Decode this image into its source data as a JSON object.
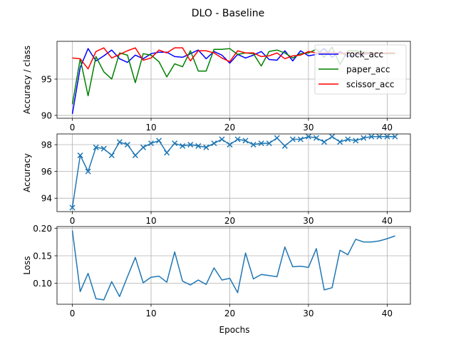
{
  "chart_data": {
    "title": "DLO - Baseline",
    "xlabel_shared": "Epochs",
    "x": [
      0,
      1,
      2,
      3,
      4,
      5,
      6,
      7,
      8,
      9,
      10,
      11,
      12,
      13,
      14,
      15,
      16,
      17,
      18,
      19,
      20,
      21,
      22,
      23,
      24,
      25,
      26,
      27,
      28,
      29,
      30,
      31,
      32,
      33,
      34,
      35,
      36,
      37,
      38,
      39,
      40,
      41
    ],
    "x_ticks": [
      0,
      10,
      20,
      30,
      40
    ],
    "subplots": [
      {
        "type": "line",
        "ylabel": "Accuracy / class",
        "ylim": [
          89.6,
          100.2
        ],
        "y_ticks": [
          90,
          95
        ],
        "grid": true,
        "legend": "top-right",
        "series": [
          {
            "name": "rock_acc",
            "color": "#0000ff",
            "values": [
              90.2,
              96.6,
              99.2,
              97.5,
              98.2,
              99.0,
              97.8,
              97.3,
              98.3,
              97.8,
              98.5,
              98.7,
              98.7,
              98.1,
              98.0,
              98.5,
              99.0,
              97.8,
              98.8,
              98.3,
              97.2,
              98.4,
              97.9,
              98.3,
              98.8,
              97.7,
              97.6,
              98.9,
              97.5,
              98.9,
              98.2,
              98.4,
              99.2,
              98.0,
              98.8,
              98.1,
              98.4,
              98.4,
              98.6,
              98.5,
              98.5,
              98.6
            ]
          },
          {
            "name": "paper_acc",
            "color": "#008000",
            "values": [
              91.5,
              97.8,
              92.7,
              98.1,
              96.0,
              95.0,
              98.6,
              98.3,
              94.5,
              98.5,
              98.3,
              97.4,
              95.3,
              97.1,
              96.7,
              98.9,
              96.1,
              96.1,
              99.1,
              99.1,
              99.2,
              98.4,
              98.6,
              98.5,
              96.8,
              98.8,
              99.0,
              98.6,
              97.9,
              98.5,
              98.6,
              99.1,
              98.0,
              99.4,
              97.0,
              98.9,
              98.9,
              98.7,
              98.6,
              98.6,
              98.5,
              98.5
            ]
          },
          {
            "name": "scissor_acc",
            "color": "#ff0000",
            "values": [
              97.9,
              97.8,
              96.4,
              98.8,
              99.3,
              97.9,
              98.4,
              98.9,
              99.3,
              97.6,
              97.9,
              99.0,
              98.6,
              99.3,
              99.3,
              97.5,
              98.9,
              98.9,
              98.6,
              97.9,
              97.4,
              98.9,
              98.6,
              98.6,
              98.1,
              98.2,
              98.6,
              97.8,
              98.2,
              98.3,
              98.8,
              98.6,
              98.6,
              98.7,
              98.5,
              98.6,
              98.6,
              98.5,
              98.6,
              98.5,
              98.6,
              98.6
            ]
          }
        ]
      },
      {
        "type": "line",
        "ylabel": "Accuracy",
        "ylim": [
          93.0,
          98.8
        ],
        "y_ticks": [
          94,
          96,
          98
        ],
        "grid": true,
        "marker": "x",
        "series": [
          {
            "color": "#1f77b4",
            "values": [
              93.3,
              97.2,
              96.0,
              97.8,
              97.7,
              97.2,
              98.2,
              98.0,
              97.2,
              97.8,
              98.1,
              98.3,
              97.4,
              98.1,
              97.9,
              98.0,
              97.9,
              97.8,
              98.1,
              98.4,
              98.0,
              98.4,
              98.3,
              98.0,
              98.1,
              98.1,
              98.5,
              97.9,
              98.4,
              98.4,
              98.6,
              98.5,
              98.2,
              98.6,
              98.2,
              98.4,
              98.3,
              98.5,
              98.6,
              98.6,
              98.6,
              98.6
            ]
          }
        ]
      },
      {
        "type": "line",
        "ylabel": "Loss",
        "xlabel": "Epochs",
        "ylim": [
          0.062,
          0.203
        ],
        "y_ticks": [
          0.1,
          0.15,
          0.2
        ],
        "y_tick_labels": [
          "0.10",
          "0.15",
          "0.20"
        ],
        "grid": true,
        "series": [
          {
            "color": "#1f77b4",
            "values": [
              0.196,
              0.085,
              0.118,
              0.072,
              0.07,
              0.103,
              0.076,
              0.112,
              0.147,
              0.101,
              0.111,
              0.113,
              0.102,
              0.157,
              0.104,
              0.097,
              0.106,
              0.098,
              0.128,
              0.106,
              0.109,
              0.083,
              0.155,
              0.108,
              0.116,
              0.114,
              0.112,
              0.166,
              0.13,
              0.131,
              0.129,
              0.163,
              0.088,
              0.092,
              0.16,
              0.152,
              0.18,
              0.175,
              0.175,
              0.177,
              0.181,
              0.186
            ]
          }
        ]
      }
    ]
  }
}
